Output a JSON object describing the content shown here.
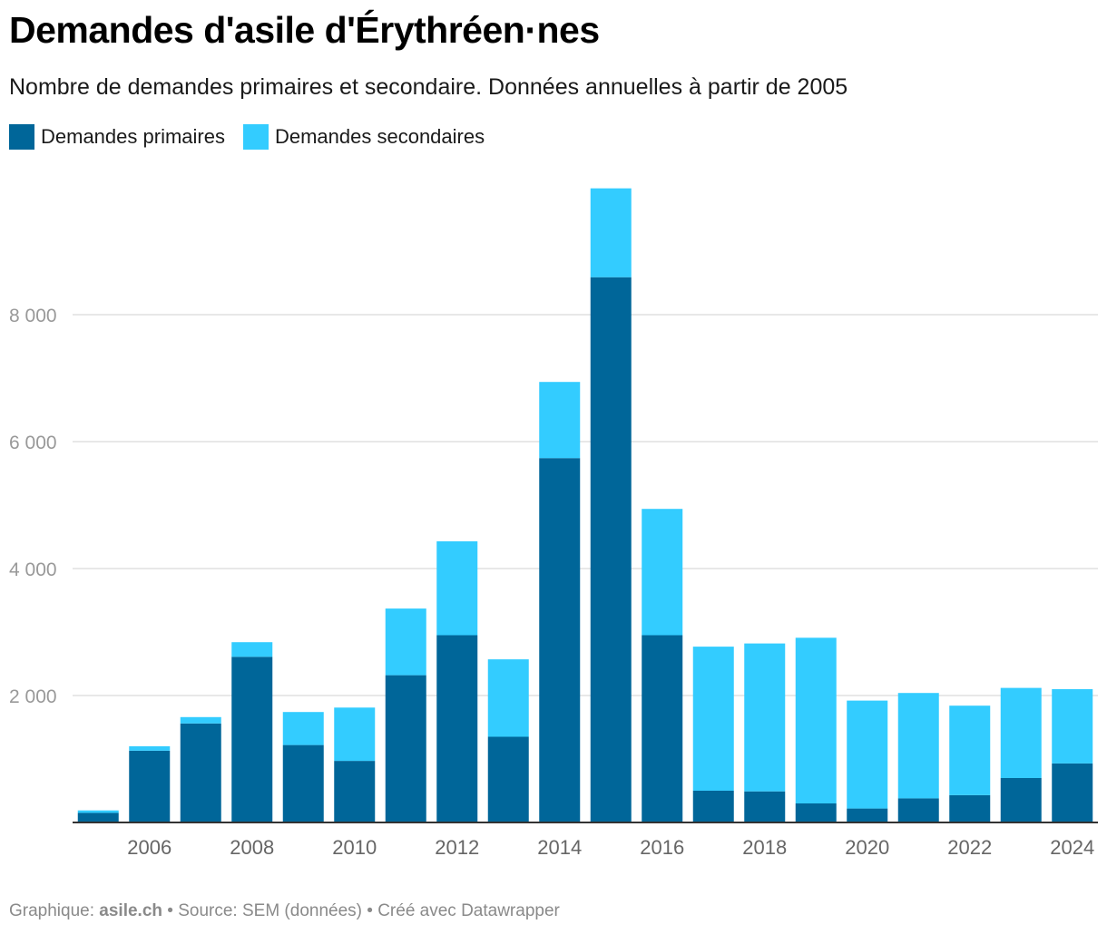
{
  "title": "Demandes d'asile d'Érythréen·nes",
  "subtitle": "Nombre de demandes primaires et secondaire. Données annuelles à partir de 2005",
  "footer": {
    "prefix": "Graphique: ",
    "brand": "asile.ch",
    "rest": " • Source: SEM (données) • Créé avec Datawrapper"
  },
  "colors": {
    "primary": "#006699",
    "secondary": "#33ccff",
    "grid": "#e0e0e0",
    "axis": "#333333",
    "tick_text": "#999999",
    "xtick_text": "#666666"
  },
  "chart_data": {
    "type": "bar",
    "stacked": true,
    "categories": [
      2005,
      2006,
      2007,
      2008,
      2009,
      2010,
      2011,
      2012,
      2013,
      2014,
      2015,
      2016,
      2017,
      2018,
      2019,
      2020,
      2021,
      2022,
      2023,
      2024
    ],
    "series": [
      {
        "name": "Demandes primaires",
        "values": [
          150,
          1130,
          1560,
          2610,
          1220,
          970,
          2320,
          2950,
          1350,
          5740,
          8590,
          2950,
          500,
          490,
          300,
          220,
          380,
          430,
          700,
          930
        ]
      },
      {
        "name": "Demandes secondaires",
        "values": [
          40,
          70,
          100,
          230,
          520,
          840,
          1050,
          1480,
          1220,
          1200,
          1400,
          1990,
          2270,
          2330,
          2610,
          1700,
          1660,
          1410,
          1420,
          1170
        ]
      }
    ],
    "yticks": [
      2000,
      4000,
      6000,
      8000
    ],
    "ytick_labels": [
      "2 000",
      "4 000",
      "6 000",
      "8 000"
    ],
    "xtick_labels": [
      "2006",
      "2008",
      "2010",
      "2012",
      "2014",
      "2016",
      "2018",
      "2020",
      "2022",
      "2024"
    ],
    "xtick_years": [
      2006,
      2008,
      2010,
      2012,
      2014,
      2016,
      2018,
      2020,
      2022,
      2024
    ],
    "ylim": [
      0,
      10000
    ],
    "grid": true,
    "legend_position": "top-left",
    "xlabel": "",
    "ylabel": ""
  }
}
